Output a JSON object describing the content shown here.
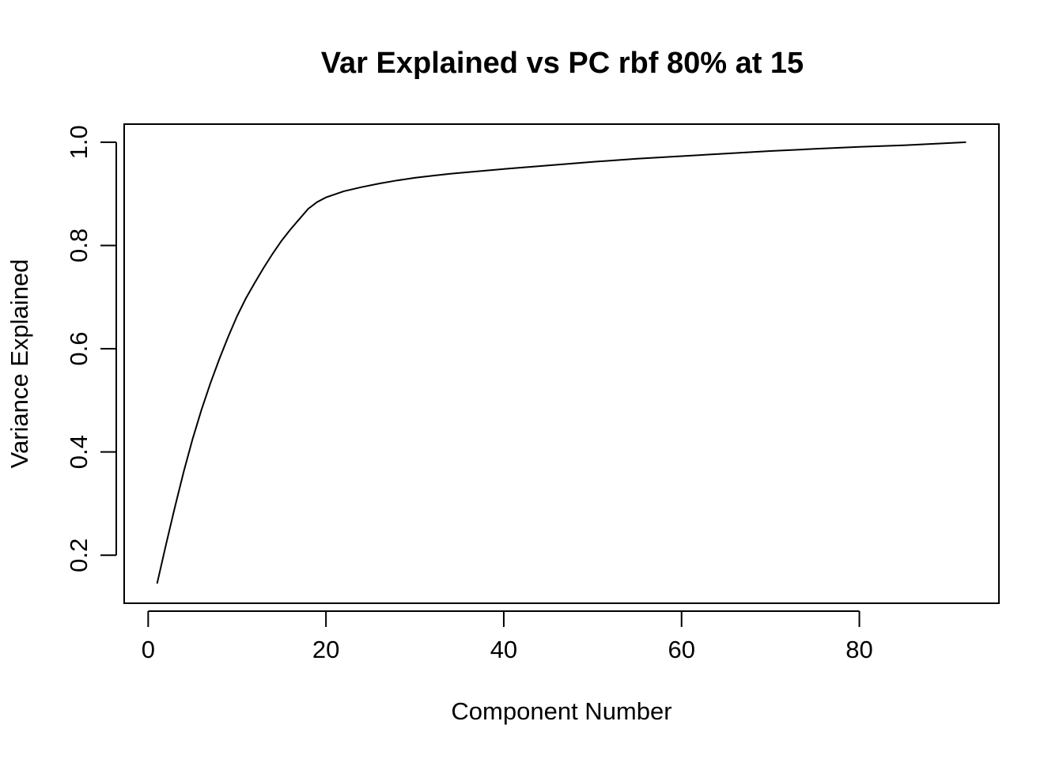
{
  "chart_data": {
    "type": "line",
    "title": "Var Explained vs PC rbf 80% at 15",
    "xlabel": "Component Number",
    "ylabel": "Variance Explained",
    "xlim": [
      -2.7,
      95.7
    ],
    "ylim": [
      0.107,
      1.035
    ],
    "x_ticks": [
      0,
      20,
      40,
      60,
      80
    ],
    "x_tick_labels": [
      "0",
      "20",
      "40",
      "60",
      "80"
    ],
    "y_ticks": [
      0.2,
      0.4,
      0.6,
      0.8,
      1.0
    ],
    "y_tick_labels": [
      "0.2",
      "0.4",
      "0.6",
      "0.8",
      "1.0"
    ],
    "grid": false,
    "legend": "none",
    "series": [
      {
        "color": "#000000",
        "x": [
          1,
          2,
          3,
          4,
          5,
          6,
          7,
          8,
          9,
          10,
          11,
          12,
          13,
          14,
          15,
          16,
          17,
          18,
          19,
          20,
          22,
          24,
          26,
          28,
          30,
          32,
          34,
          36,
          38,
          40,
          45,
          50,
          55,
          60,
          65,
          70,
          75,
          80,
          85,
          92
        ],
        "y": [
          0.145,
          0.22,
          0.293,
          0.362,
          0.425,
          0.482,
          0.533,
          0.58,
          0.623,
          0.663,
          0.698,
          0.728,
          0.757,
          0.784,
          0.809,
          0.831,
          0.851,
          0.871,
          0.884,
          0.893,
          0.905,
          0.913,
          0.92,
          0.926,
          0.931,
          0.935,
          0.939,
          0.942,
          0.945,
          0.948,
          0.955,
          0.962,
          0.968,
          0.973,
          0.978,
          0.983,
          0.987,
          0.991,
          0.994,
          1.0
        ]
      }
    ]
  }
}
